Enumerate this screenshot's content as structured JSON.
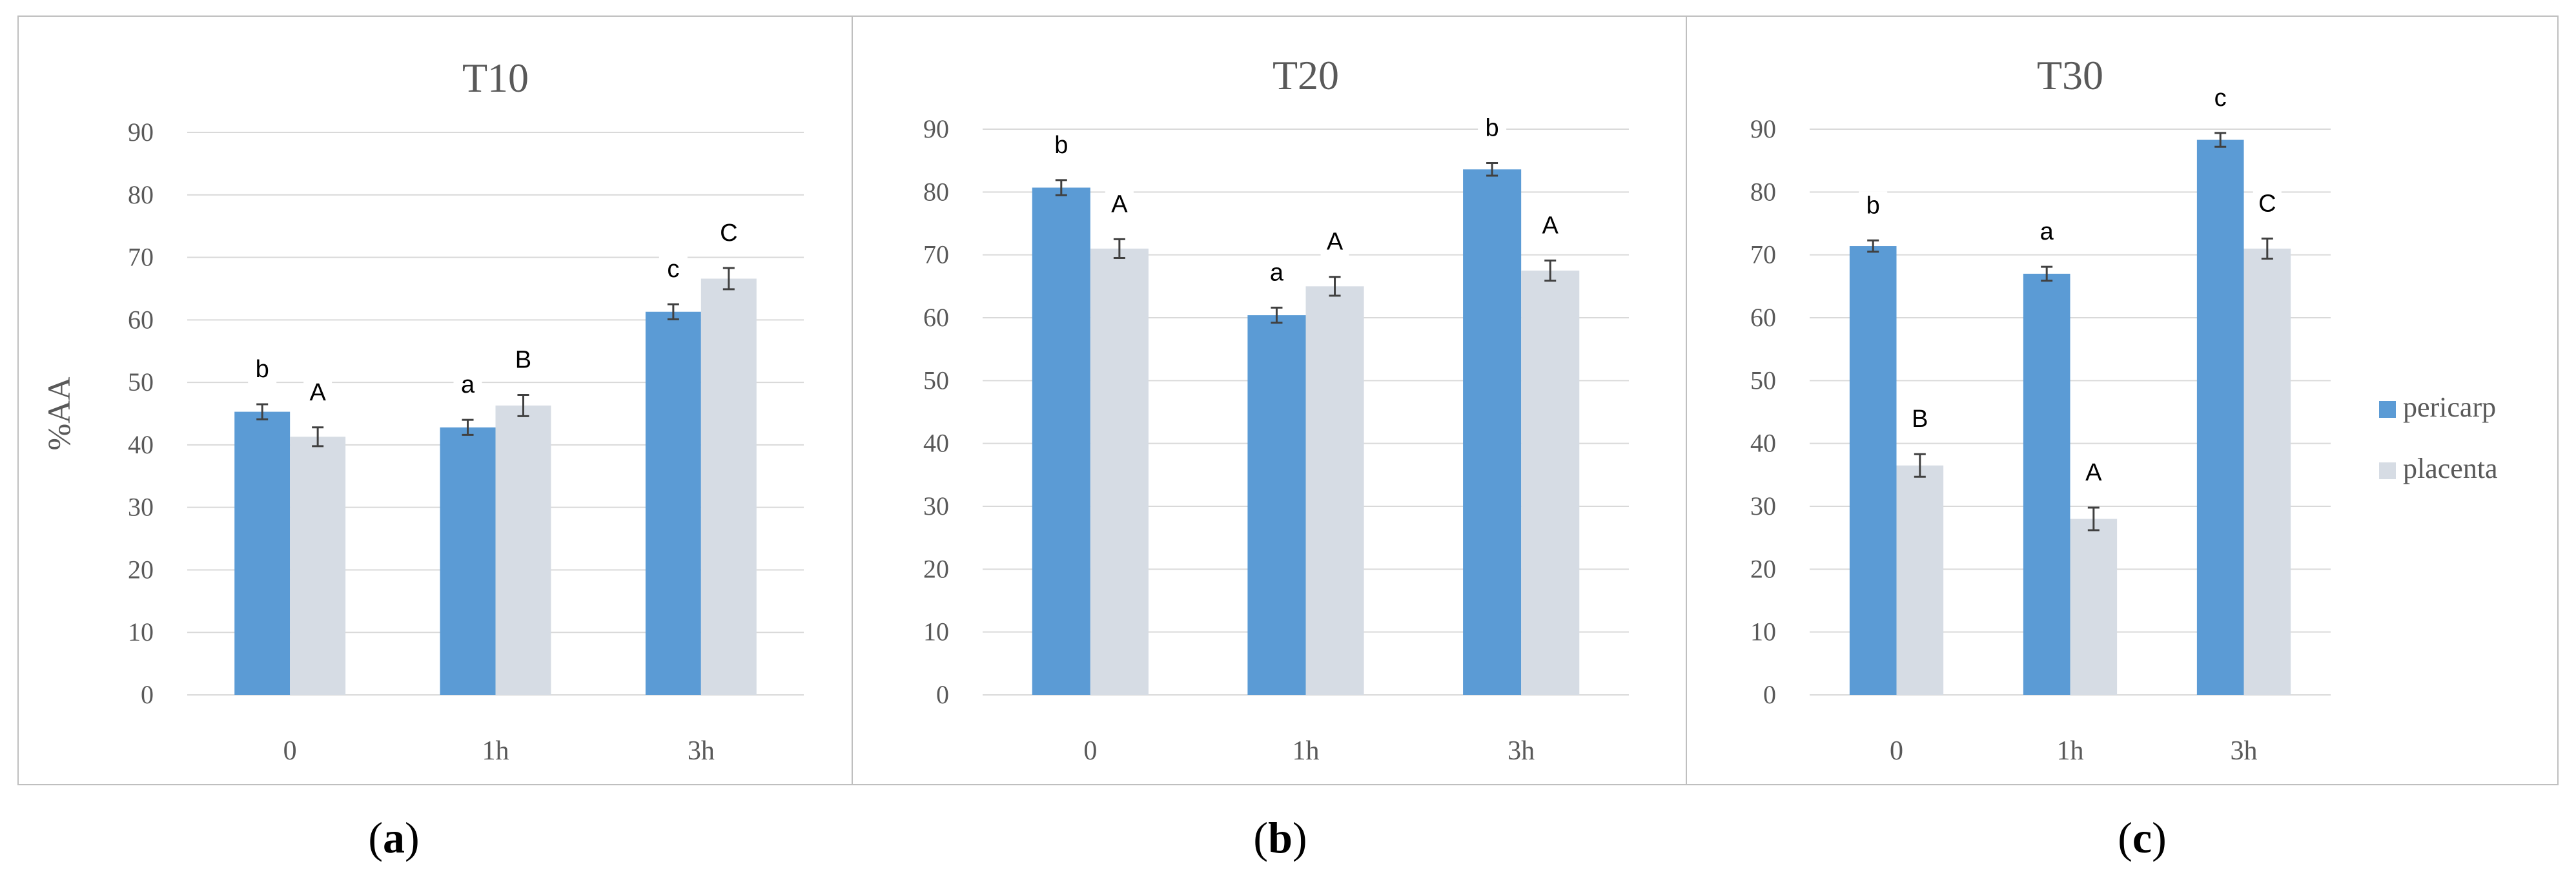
{
  "figure": {
    "colors": {
      "pericarp": "#5b9bd5",
      "placenta": "#d6dce4",
      "grid": "#d9d9d9",
      "tick_text": "#595959",
      "error_bar": "#404040",
      "panel_border": "#bfbfbf"
    },
    "legend": {
      "placement": "right",
      "items": [
        "pericarp",
        "placenta"
      ]
    }
  },
  "chart_data": [
    {
      "type": "bar",
      "title": "T10",
      "ylabel": "%AA",
      "xlabel": "",
      "ylim": [
        0,
        90
      ],
      "yticks": [
        0,
        10,
        20,
        30,
        40,
        50,
        60,
        70,
        80,
        90
      ],
      "grid": true,
      "categories": [
        "0",
        "1h",
        "3h"
      ],
      "series": [
        {
          "name": "pericarp",
          "values": [
            45.3,
            42.8,
            61.3
          ],
          "errors": [
            1.2,
            1.2,
            1.2
          ],
          "letters": [
            "b",
            "a",
            "c"
          ]
        },
        {
          "name": "placenta",
          "values": [
            41.3,
            46.3,
            66.6
          ],
          "errors": [
            1.5,
            1.7,
            1.7
          ],
          "letters": [
            "A",
            "B",
            "C"
          ]
        }
      ],
      "panel_label": {
        "open": "(",
        "letter": "a",
        "close": ")"
      }
    },
    {
      "type": "bar",
      "title": "T20",
      "ylabel": "",
      "xlabel": "",
      "ylim": [
        0,
        90
      ],
      "yticks": [
        0,
        10,
        20,
        30,
        40,
        50,
        60,
        70,
        80,
        90
      ],
      "grid": true,
      "categories": [
        "0",
        "1h",
        "3h"
      ],
      "series": [
        {
          "name": "pericarp",
          "values": [
            80.7,
            60.4,
            83.6
          ],
          "errors": [
            1.2,
            1.2,
            1.0
          ],
          "letters": [
            "b",
            "a",
            "b"
          ]
        },
        {
          "name": "placenta",
          "values": [
            71.0,
            65.0,
            67.5
          ],
          "errors": [
            1.5,
            1.5,
            1.6
          ],
          "letters": [
            "A",
            "A",
            "A"
          ]
        }
      ],
      "panel_label": {
        "open": "(",
        "letter": "b",
        "close": ")"
      }
    },
    {
      "type": "bar",
      "title": "T30",
      "ylabel": "",
      "xlabel": "",
      "ylim": [
        0,
        90
      ],
      "yticks": [
        0,
        10,
        20,
        30,
        40,
        50,
        60,
        70,
        80,
        90
      ],
      "grid": true,
      "categories": [
        "0",
        "1h",
        "3h"
      ],
      "series": [
        {
          "name": "pericarp",
          "values": [
            71.4,
            67.0,
            88.3
          ],
          "errors": [
            0.9,
            1.1,
            1.1
          ],
          "letters": [
            "b",
            "a",
            "c"
          ]
        },
        {
          "name": "placenta",
          "values": [
            36.5,
            28.0,
            71.0
          ],
          "errors": [
            1.8,
            1.8,
            1.6
          ],
          "letters": [
            "B",
            "A",
            "C"
          ]
        }
      ],
      "panel_label": {
        "open": "(",
        "letter": "c",
        "close": ")"
      }
    }
  ]
}
